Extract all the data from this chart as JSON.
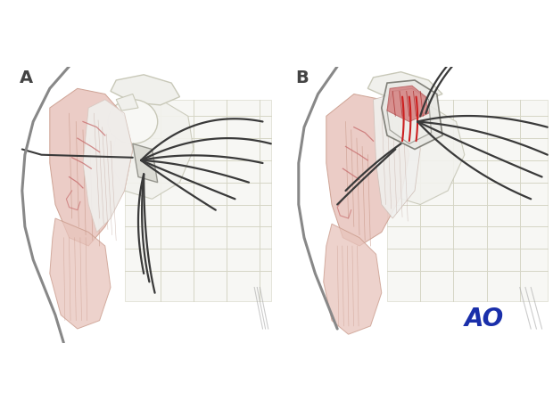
{
  "fig_width": 6.2,
  "fig_height": 4.59,
  "dpi": 100,
  "bg_color": "#ffffff",
  "label_A": "A",
  "label_B": "B",
  "label_AO": "AO",
  "label_fontsize": 14,
  "ao_color": "#1a2faa",
  "ao_fontsize": 20,
  "bone_fill": "#f0f0ec",
  "bone_stroke": "#c8c8b8",
  "rib_stroke": "#d5d5c5",
  "rib_fill": "#f5f5f0",
  "muscle_fill": "#e8c4bc",
  "muscle_stroke": "#c89888",
  "muscle_fill2": "#ddb8b0",
  "body_outline": "#888888",
  "suture_dark": "#3a3a3a",
  "suture_red": "#cc2020",
  "retractor_fill": "#d8d8d0",
  "retractor_stroke": "#888880",
  "red_muscle_fill": "#d48080",
  "white_tendon": "#f0f0ee"
}
